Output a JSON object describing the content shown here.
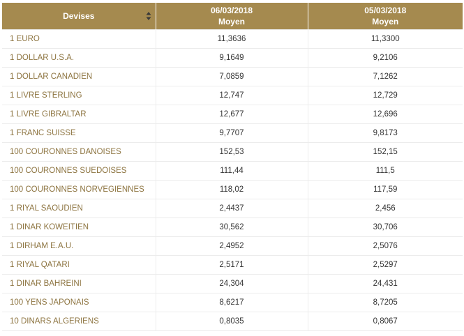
{
  "header": {
    "devises_label": "Devises",
    "col1_date": "06/03/2018",
    "col1_sub": "Moyen",
    "col2_date": "05/03/2018",
    "col2_sub": "Moyen",
    "sort_icon": "sort-icon",
    "header_color": "#a58a4f"
  },
  "rows": [
    {
      "name": "1 EURO",
      "v1": "11,3636",
      "v2": "11,3300"
    },
    {
      "name": "1 DOLLAR U.S.A.",
      "v1": "9,1649",
      "v2": "9,2106"
    },
    {
      "name": "1 DOLLAR CANADIEN",
      "v1": "7,0859",
      "v2": "7,1262"
    },
    {
      "name": "1 LIVRE STERLING",
      "v1": "12,747",
      "v2": "12,729"
    },
    {
      "name": "1 LIVRE GIBRALTAR",
      "v1": "12,677",
      "v2": "12,696"
    },
    {
      "name": "1 FRANC SUISSE",
      "v1": "9,7707",
      "v2": "9,8173"
    },
    {
      "name": "100 COURONNES DANOISES",
      "v1": "152,53",
      "v2": "152,15"
    },
    {
      "name": "100 COURONNES SUEDOISES",
      "v1": "111,44",
      "v2": "111,5"
    },
    {
      "name": "100 COURONNES NORVEGIENNES",
      "v1": "118,02",
      "v2": "117,59"
    },
    {
      "name": "1 RIYAL SAOUDIEN",
      "v1": "2,4437",
      "v2": "2,456"
    },
    {
      "name": "1 DINAR KOWEITIEN",
      "v1": "30,562",
      "v2": "30,706"
    },
    {
      "name": "1 DIRHAM E.A.U.",
      "v1": "2,4952",
      "v2": "2,5076"
    },
    {
      "name": "1 RIYAL QATARI",
      "v1": "2,5171",
      "v2": "2,5297"
    },
    {
      "name": "1 DINAR BAHREINI",
      "v1": "24,304",
      "v2": "24,431"
    },
    {
      "name": "100 YENS JAPONAIS",
      "v1": "8,6217",
      "v2": "8,7205"
    },
    {
      "name": "10 DINARS ALGERIENS",
      "v1": "0,8035",
      "v2": "0,8067"
    }
  ]
}
